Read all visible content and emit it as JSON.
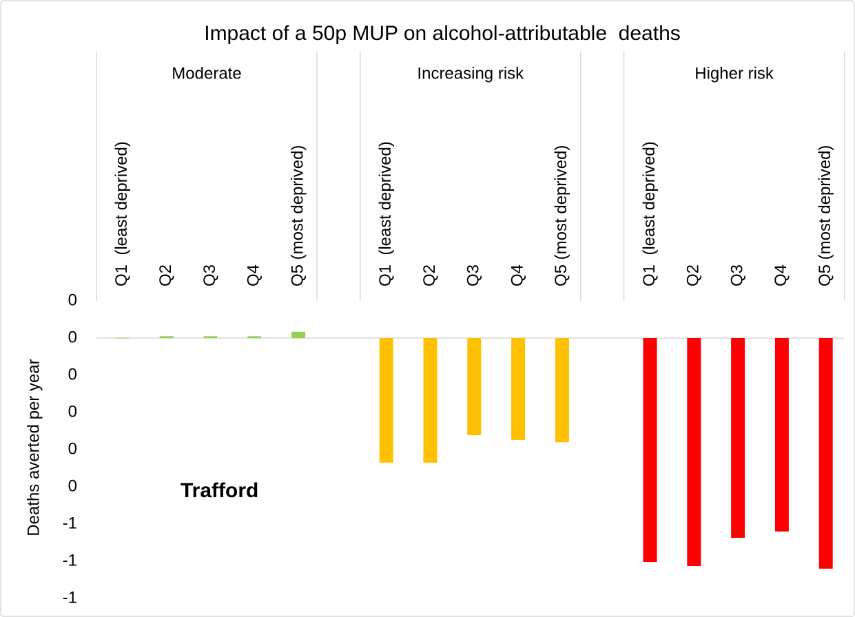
{
  "chart_data": {
    "type": "bar",
    "title": "Impact of a 50p MUP on alcohol-attributable  deaths",
    "y_label": "Deaths averted per year",
    "annotation": "Trafford",
    "categories": [
      "Q1  (least deprived)",
      "Q2",
      "Q3",
      "Q4",
      "Q5 (most deprived)"
    ],
    "series": [
      {
        "name": "Moderate",
        "color": "#92d050",
        "values": [
          0.001,
          0.005,
          0.005,
          0.005,
          0.017
        ]
      },
      {
        "name": "Increasing risk",
        "color": "#ffc000",
        "values": [
          -0.335,
          -0.335,
          -0.261,
          -0.274,
          -0.28
        ]
      },
      {
        "name": "Higher risk",
        "color": "#ff0000",
        "values": [
          -0.602,
          -0.613,
          -0.537,
          -0.52,
          -0.62
        ]
      }
    ],
    "ylim": [
      -0.7,
      0.1
    ],
    "yticks": [
      {
        "value": 0.1,
        "label": "0"
      },
      0,
      {
        "value": -0.1,
        "label": "0"
      },
      {
        "value": -0.2,
        "label": "0"
      },
      {
        "value": -0.3,
        "label": "0"
      },
      {
        "value": -0.4,
        "label": "0"
      },
      {
        "value": -0.5,
        "label": "-1"
      },
      {
        "value": -0.6,
        "label": "-1"
      },
      {
        "value": -0.7,
        "label": "-1"
      }
    ]
  }
}
